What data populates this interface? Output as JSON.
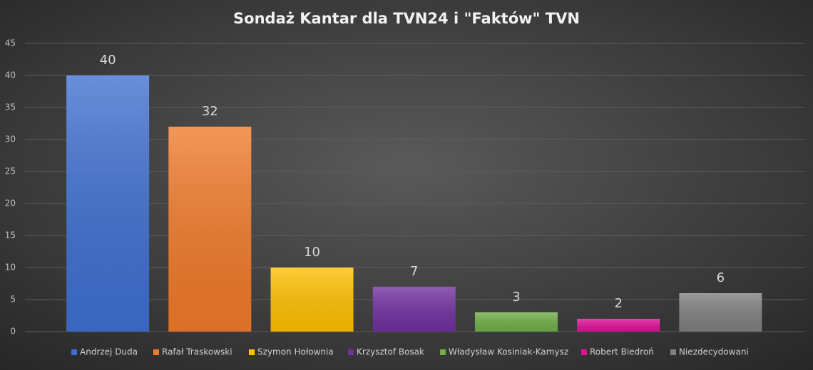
{
  "chart_data": {
    "type": "bar",
    "title": "Sondaż Kantar dla TVN24 i \"Faktów\" TVN",
    "categories": [
      "Andrzej Duda",
      "Rafał Traskowski",
      "Szymon Hołownia",
      "Krzysztof Bosak",
      "Władysław Kosiniak-Kamysz",
      "Robert Biedroń",
      "Niezdecydowani"
    ],
    "values": [
      40,
      32,
      10,
      7,
      3,
      2,
      6
    ],
    "colors": [
      "#3f6fd0",
      "#f07a2a",
      "#ffc000",
      "#7030a0",
      "#70ad47",
      "#e0109a",
      "#7f7f7f"
    ],
    "ylim": [
      0,
      45
    ],
    "yticks": [
      0,
      5,
      10,
      15,
      20,
      25,
      30,
      35,
      40,
      45
    ],
    "grid": true,
    "legend": "bottom"
  }
}
